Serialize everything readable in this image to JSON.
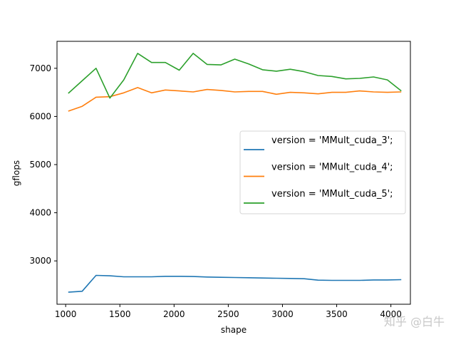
{
  "chart_data": {
    "type": "line",
    "xlabel": "shape",
    "ylabel": "gflops",
    "xlim": [
      920,
      4180
    ],
    "ylim": [
      2100,
      7560
    ],
    "xticks": [
      1000,
      1500,
      2000,
      2500,
      3000,
      3500,
      4000
    ],
    "yticks": [
      3000,
      4000,
      5000,
      6000,
      7000
    ],
    "grid": false,
    "legend_position": "center-right",
    "x": [
      1024,
      1152,
      1280,
      1408,
      1536,
      1664,
      1792,
      1920,
      2048,
      2176,
      2304,
      2432,
      2560,
      2688,
      2816,
      2944,
      3072,
      3200,
      3328,
      3456,
      3584,
      3712,
      3840,
      3968,
      4096
    ],
    "series": [
      {
        "name": "version = 'MMult_cuda_3';",
        "color": "#1f77b4",
        "values": [
          2350,
          2370,
          2700,
          2690,
          2670,
          2670,
          2670,
          2680,
          2680,
          2675,
          2665,
          2660,
          2655,
          2650,
          2645,
          2640,
          2635,
          2630,
          2600,
          2595,
          2595,
          2595,
          2605,
          2605,
          2610
        ]
      },
      {
        "name": "version = 'MMult_cuda_4';",
        "color": "#ff7f0e",
        "values": [
          6110,
          6210,
          6400,
          6410,
          6490,
          6600,
          6490,
          6550,
          6530,
          6510,
          6560,
          6540,
          6510,
          6520,
          6520,
          6460,
          6500,
          6490,
          6470,
          6500,
          6500,
          6530,
          6510,
          6500,
          6510
        ]
      },
      {
        "name": "version = 'MMult_cuda_5';",
        "color": "#2ca02c",
        "values": [
          6480,
          6740,
          7000,
          6380,
          6760,
          7310,
          7120,
          7120,
          6960,
          7310,
          7080,
          7070,
          7190,
          7090,
          6970,
          6940,
          6980,
          6930,
          6850,
          6830,
          6780,
          6790,
          6820,
          6760,
          6530
        ]
      }
    ]
  },
  "watermark": "知乎 @白牛"
}
